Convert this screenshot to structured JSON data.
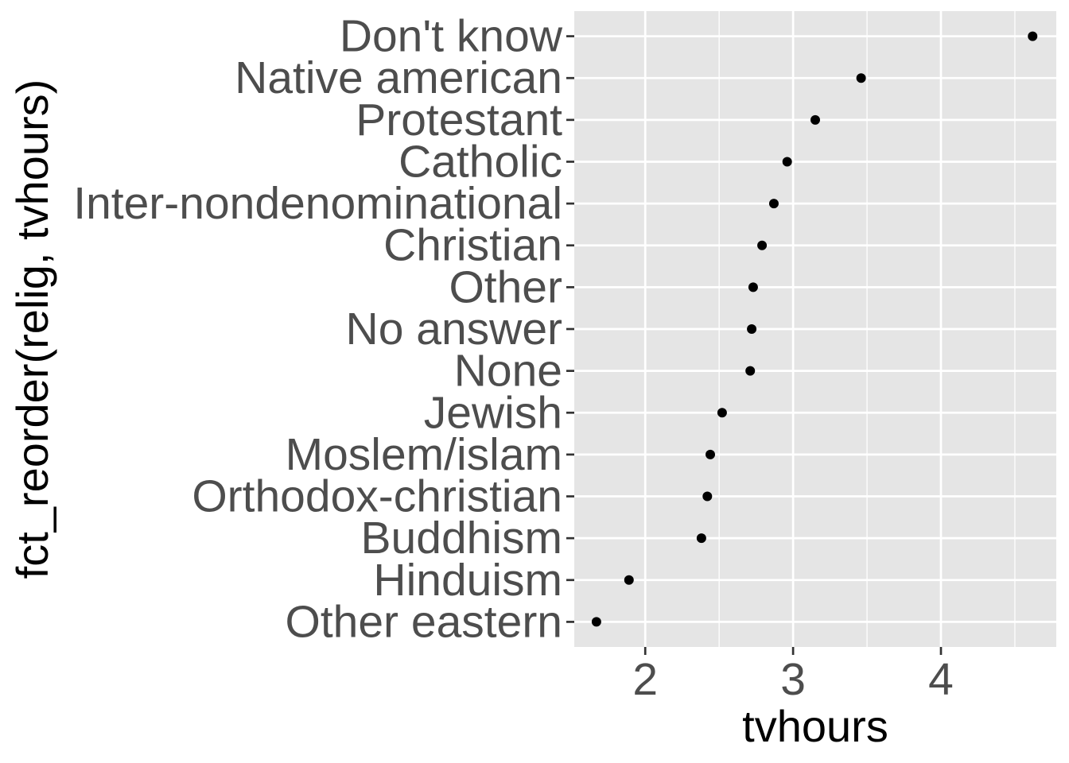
{
  "chart_data": {
    "type": "scatter",
    "xlabel": "tvhours",
    "ylabel": "fct_reorder(relig, tvhours)",
    "xlim": [
      1.52,
      4.78
    ],
    "x_ticks": [
      2,
      3,
      4
    ],
    "x_tick_labels": [
      "2",
      "3",
      "4"
    ],
    "grid": true,
    "background": "#e5e5e5",
    "gridline_color": "#ffffff",
    "point_color": "#000000",
    "categories": [
      "Other eastern",
      "Hinduism",
      "Buddhism",
      "Orthodox-christian",
      "Moslem/islam",
      "Jewish",
      "None",
      "No answer",
      "Other",
      "Christian",
      "Inter-nondenominational",
      "Catholic",
      "Protestant",
      "Native american",
      "Don't know"
    ],
    "values": [
      1.67,
      1.89,
      2.38,
      2.42,
      2.44,
      2.52,
      2.71,
      2.72,
      2.73,
      2.79,
      2.87,
      2.96,
      3.15,
      3.46,
      4.62
    ]
  }
}
